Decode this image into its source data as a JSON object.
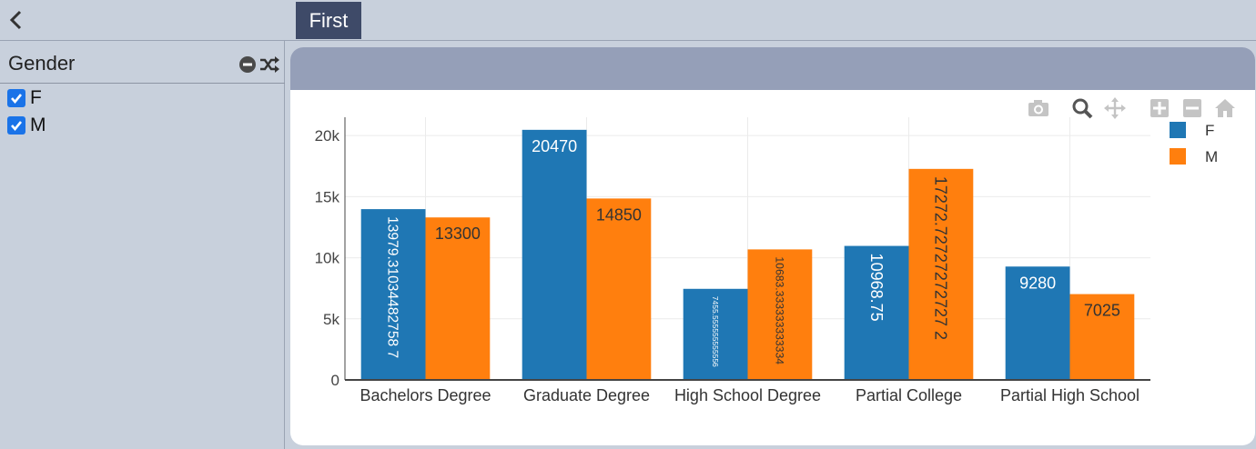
{
  "topbar": {
    "back_icon": "chevron-left-icon",
    "tabs": [
      {
        "label": "First",
        "active": true
      }
    ]
  },
  "sidebar": {
    "filter": {
      "title": "Gender",
      "actions": [
        {
          "icon": "minus-circle-icon"
        },
        {
          "icon": "shuffle-icon"
        }
      ],
      "options": [
        {
          "label": "F",
          "checked": true
        },
        {
          "label": "M",
          "checked": true
        }
      ]
    }
  },
  "modebar": {
    "icons": [
      "camera-icon",
      "zoom-icon",
      "pan-icon",
      "zoom-in-icon",
      "zoom-out-icon",
      "home-icon"
    ]
  },
  "chart_data": {
    "type": "bar",
    "categories": [
      "Bachelors Degree",
      "Graduate Degree",
      "High School Degree",
      "Partial College",
      "Partial High School"
    ],
    "series": [
      {
        "name": "F",
        "color": "#1f77b4",
        "values": [
          13979.310344827587,
          20470,
          7455.555555555556,
          10968.75,
          9280
        ],
        "labels": [
          "13979.31034482758 7",
          "20470",
          "7455.555555555556",
          "10968.75",
          "9280"
        ]
      },
      {
        "name": "M",
        "color": "#ff7f0e",
        "values": [
          13300,
          14850,
          10683.333333333334,
          17272.727272727272,
          7025
        ],
        "labels": [
          "13300",
          "14850",
          "10683.333333333334",
          "17272.72727272727 2",
          "7025"
        ]
      }
    ],
    "yticks": [
      {
        "value": 0,
        "label": "0"
      },
      {
        "value": 5000,
        "label": "5k"
      },
      {
        "value": 10000,
        "label": "10k"
      },
      {
        "value": 15000,
        "label": "15k"
      },
      {
        "value": 20000,
        "label": "20k"
      }
    ],
    "ylim": [
      0,
      21500
    ],
    "grid": true,
    "legend_position": "top-right"
  }
}
